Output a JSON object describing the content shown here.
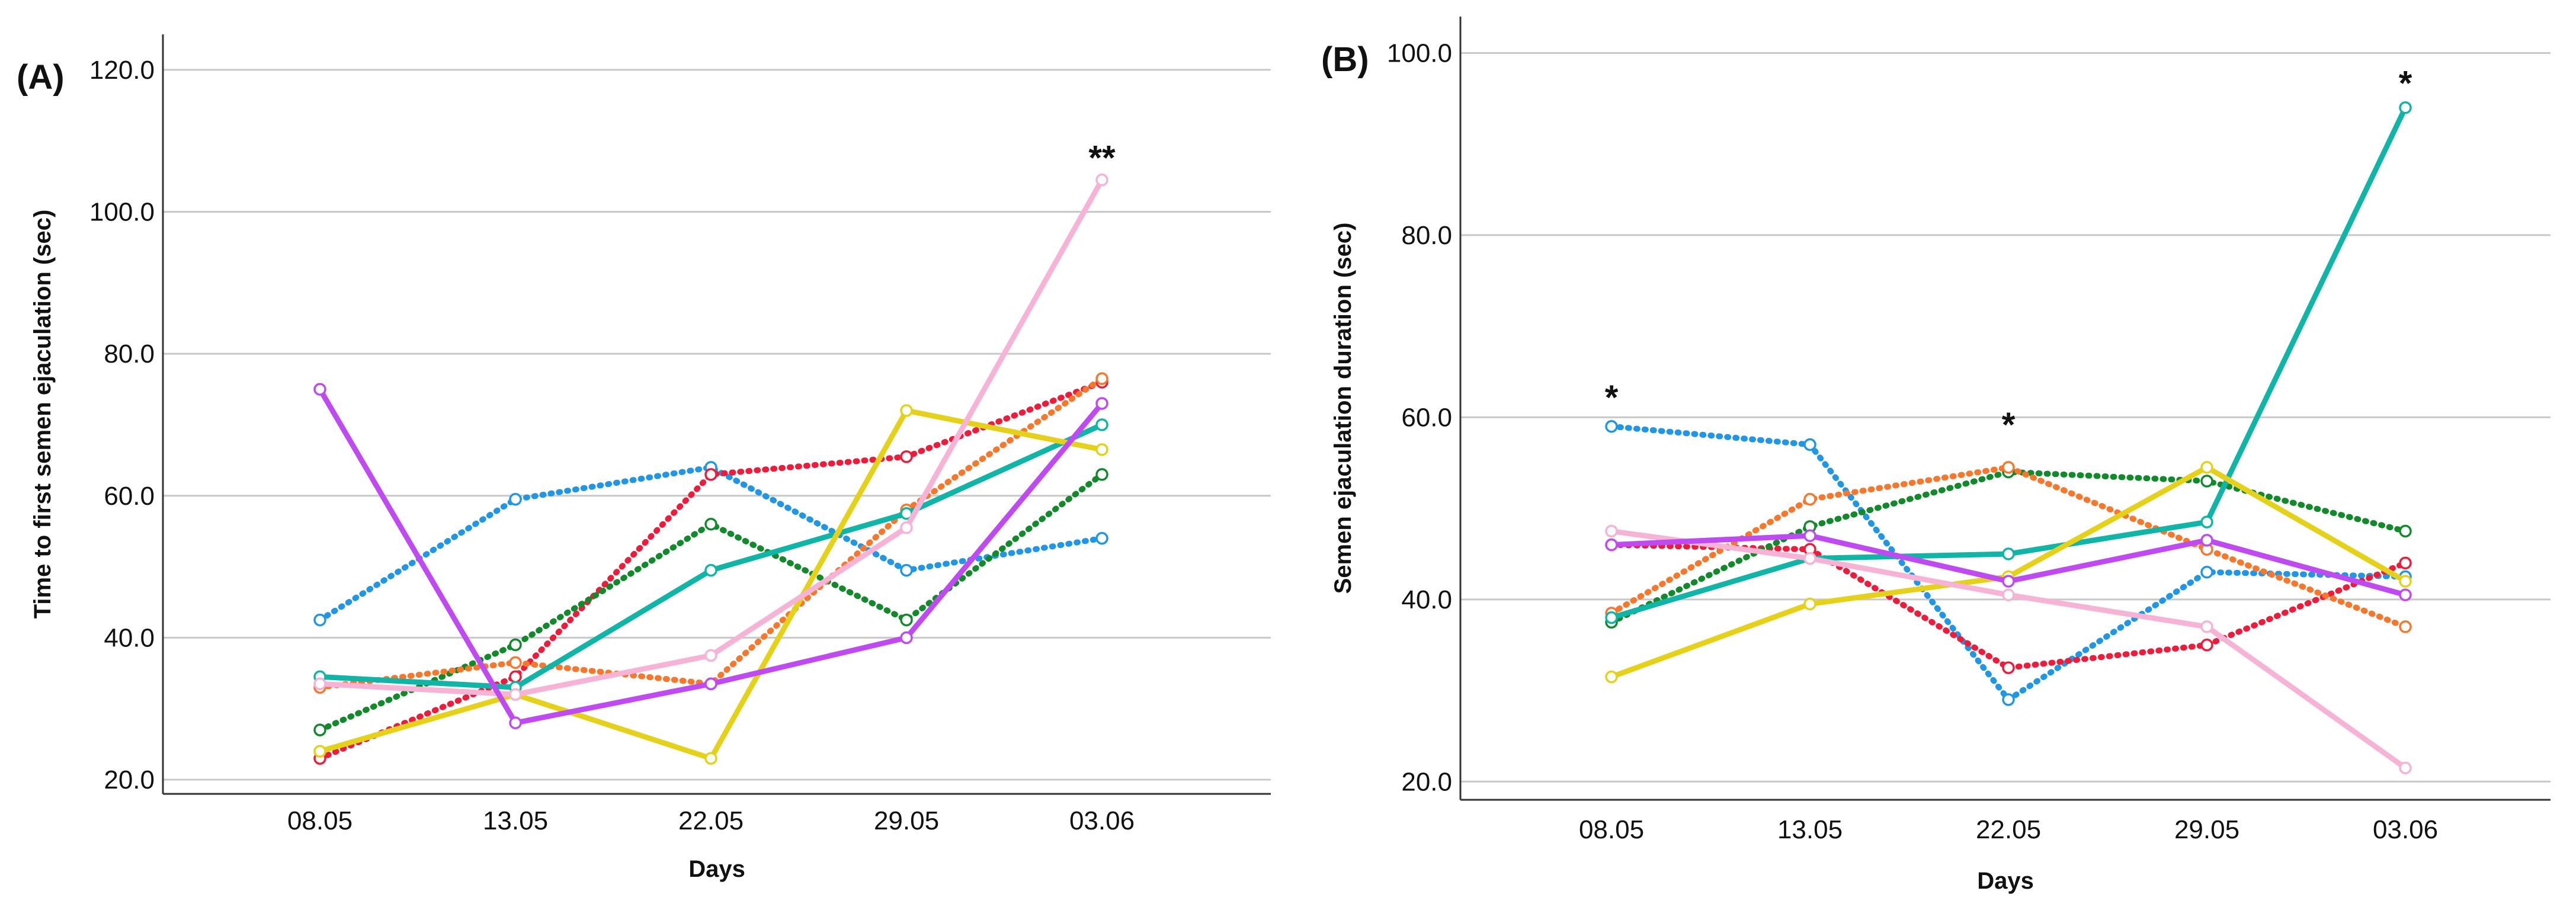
{
  "chart_data": [
    {
      "type": "line",
      "panel_label": "(A)",
      "title": "",
      "xlabel": "Days",
      "ylabel": "Time to first semen ejaculation (sec)",
      "categories": [
        "08.05",
        "13.05",
        "22.05",
        "29.05",
        "03.06"
      ],
      "ylim": [
        18,
        125
      ],
      "yticks": [
        20,
        40,
        60,
        80,
        100,
        120
      ],
      "ytick_labels": [
        "20.0",
        "40.0",
        "60.0",
        "80.0",
        "100.0",
        "120.0"
      ],
      "grid": true,
      "series": [
        {
          "name": "blue (dotted)",
          "color": "#2196e6",
          "style": "dotted",
          "values": [
            42.5,
            59.5,
            64,
            49.5,
            54
          ]
        },
        {
          "name": "red (dotted)",
          "color": "#ee1c3a",
          "style": "dotted",
          "values": [
            23,
            34.5,
            63,
            65.5,
            76
          ]
        },
        {
          "name": "green (dotted)",
          "color": "#128a2b",
          "style": "dotted",
          "values": [
            27,
            39,
            56,
            42.5,
            63
          ]
        },
        {
          "name": "orange (dotted)",
          "color": "#f7772c",
          "style": "dotted",
          "values": [
            33,
            36.5,
            33.5,
            58,
            76.5
          ]
        },
        {
          "name": "teal",
          "color": "#10b5a8",
          "style": "solid",
          "values": [
            34.5,
            33,
            49.5,
            57.5,
            70
          ]
        },
        {
          "name": "yellow",
          "color": "#e6d11a",
          "style": "solid",
          "values": [
            24,
            32,
            23,
            72,
            66.5
          ]
        },
        {
          "name": "pink",
          "color": "#f7b3d6",
          "style": "solid",
          "values": [
            33.5,
            32,
            37.5,
            55.5,
            104.5
          ]
        },
        {
          "name": "purple",
          "color": "#c04af2",
          "style": "solid",
          "values": [
            75,
            28,
            33.5,
            40,
            73
          ]
        }
      ],
      "annotations": [
        {
          "text": "**",
          "category": "03.06",
          "y": 108
        }
      ]
    },
    {
      "type": "line",
      "panel_label": "(B)",
      "title": "",
      "xlabel": "Days",
      "ylabel": "Semen ejaculation duration (sec)",
      "categories": [
        "08.05",
        "13.05",
        "22.05",
        "29.05",
        "03.06"
      ],
      "ylim": [
        18,
        104
      ],
      "yticks": [
        20,
        40,
        60,
        80,
        100
      ],
      "ytick_labels": [
        "20.0",
        "40.0",
        "60.0",
        "80.0",
        "100.0"
      ],
      "grid": true,
      "series": [
        {
          "name": "blue (dotted)",
          "color": "#2196e6",
          "style": "dotted",
          "values": [
            59,
            57,
            29,
            43,
            42.5
          ]
        },
        {
          "name": "red (dotted)",
          "color": "#ee1c3a",
          "style": "dotted",
          "values": [
            46,
            45.5,
            32.5,
            35,
            44
          ]
        },
        {
          "name": "green (dotted)",
          "color": "#128a2b",
          "style": "dotted",
          "values": [
            37.5,
            48,
            54,
            53,
            47.5
          ]
        },
        {
          "name": "orange (dotted)",
          "color": "#f7772c",
          "style": "dotted",
          "values": [
            38.5,
            51,
            54.5,
            45.5,
            37
          ]
        },
        {
          "name": "teal",
          "color": "#10b5a8",
          "style": "solid",
          "values": [
            38,
            44.5,
            45,
            48.5,
            94
          ]
        },
        {
          "name": "yellow",
          "color": "#e6d11a",
          "style": "solid",
          "values": [
            31.5,
            39.5,
            42.5,
            54.5,
            42
          ]
        },
        {
          "name": "pink",
          "color": "#f7b3d6",
          "style": "solid",
          "values": [
            47.5,
            44.5,
            40.5,
            37,
            21.5
          ]
        },
        {
          "name": "purple",
          "color": "#c04af2",
          "style": "solid",
          "values": [
            46,
            47,
            42,
            46.5,
            40.5
          ]
        }
      ],
      "annotations": [
        {
          "text": "*",
          "category": "08.05",
          "y": 62.5
        },
        {
          "text": "*",
          "category": "22.05",
          "y": 59.5
        },
        {
          "text": "*",
          "category": "03.06",
          "y": 97
        }
      ]
    }
  ]
}
